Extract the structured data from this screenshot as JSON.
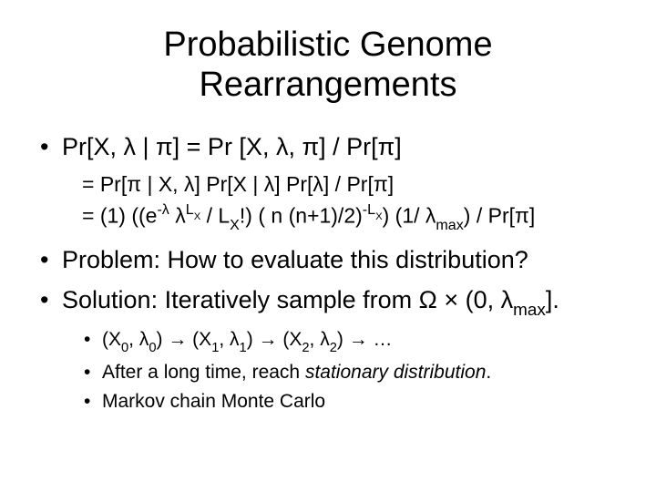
{
  "title_line1": "Probabilistic Genome",
  "title_line2": "Rearrangements",
  "b1": "Pr[X, λ | π]  = Pr [X, λ, π] / Pr[π]",
  "b1_sub1": "= Pr[π | X, λ] Pr[X | λ] Pr[λ] / Pr[π]",
  "b1_sub2_html": "= (1) ((e<span class=\"sup\">-λ</span> λ<span class=\"sup\">L<span class=\"sub\">X</span></span>  / L<span class=\"sub\">X</span>!) ( n (n+1)/2)<span class=\"sup\">-L<span class=\"sub\">X</span></span>) (1/ λ<span class=\"sub\">max</span>) / Pr[π]",
  "b2": "Problem: How to evaluate this distribution?",
  "b3_html": "Solution: Iteratively sample from Ω × (0, λ<span class=\"sub\">max</span>].",
  "b3_sub1_html": "(X<span class=\"sub\">0</span>, λ<span class=\"sub\">0</span>) → (X<span class=\"sub\">1</span>, λ<span class=\"sub\">1</span>) → (X<span class=\"sub\">2</span>, λ<span class=\"sub\">2</span>) → …",
  "b3_sub2_html": "After a long time, reach <span class=\"ital\">stationary distribution</span>.",
  "b3_sub3": "Markov chain Monte Carlo"
}
